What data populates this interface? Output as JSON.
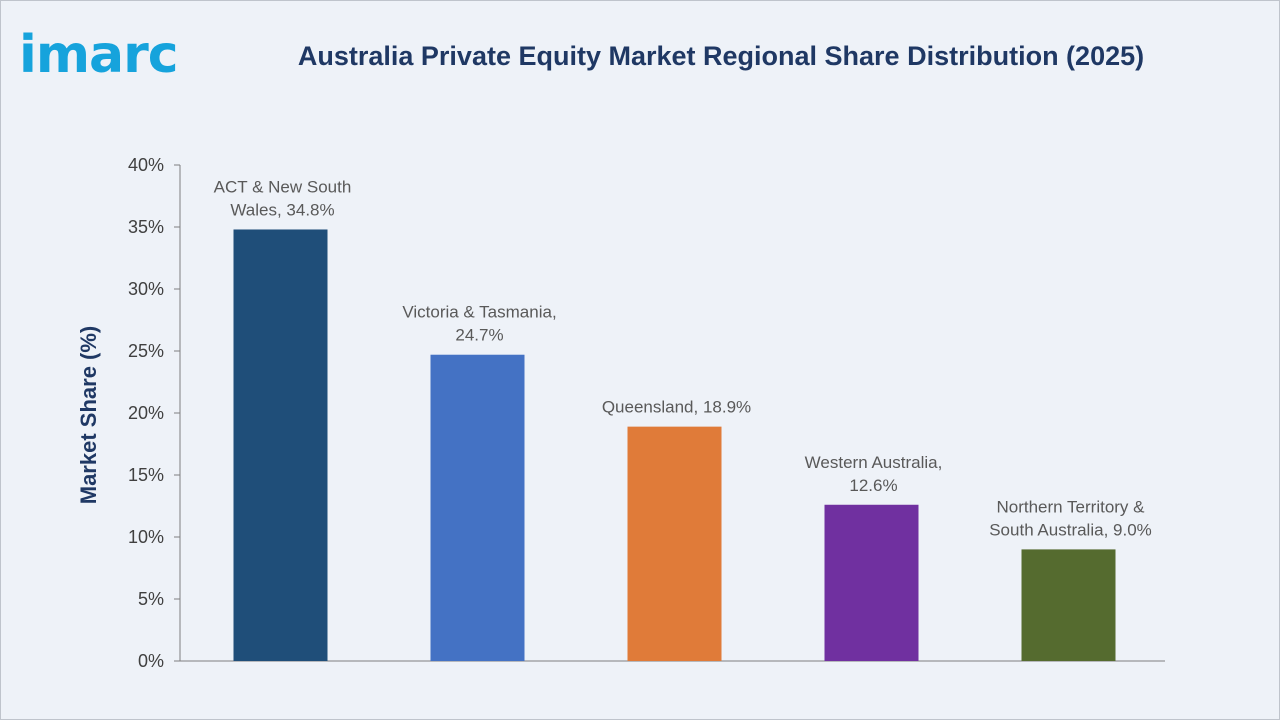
{
  "header": {
    "logo_text": "imarc",
    "title": "Australia Private Equity Market Regional Share Distribution (2025)"
  },
  "chart_data": {
    "type": "bar",
    "title": "Australia Private Equity Market Regional Share Distribution (2025)",
    "xlabel": "",
    "ylabel": "Market Share (%)",
    "ylim": [
      0,
      40
    ],
    "yticks": [
      0,
      5,
      10,
      15,
      20,
      25,
      30,
      35,
      40
    ],
    "ytick_labels": [
      "0%",
      "5%",
      "10%",
      "15%",
      "20%",
      "25%",
      "30%",
      "35%",
      "40%"
    ],
    "grid": false,
    "legend": "none",
    "categories": [
      "ACT & New South Wales",
      "Victoria & Tasmania",
      "Queensland",
      "Western Australia",
      "Northern Territory & South Australia"
    ],
    "values": [
      34.8,
      24.7,
      18.9,
      12.6,
      9.0
    ],
    "data_labels": [
      [
        "ACT & New South",
        "Wales, 34.8%"
      ],
      [
        "Victoria & Tasmania,",
        "24.7%"
      ],
      [
        "Queensland, 18.9%"
      ],
      [
        "Western Australia,",
        "12.6%"
      ],
      [
        "Northern Territory &",
        "South Australia, 9.0%"
      ]
    ],
    "colors": [
      "#1f4e79",
      "#4472c4",
      "#e07b39",
      "#7030a0",
      "#556b2f"
    ]
  }
}
